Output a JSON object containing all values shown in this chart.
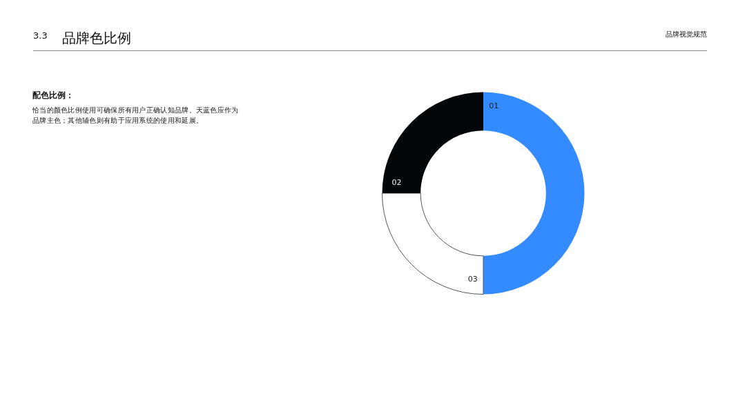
{
  "chart_data": {
    "type": "donut",
    "title": "品牌色比例",
    "categories": [
      "01",
      "03",
      "02"
    ],
    "values": [
      50,
      25,
      25
    ],
    "colors": [
      "#338bff",
      "#ffffff",
      "#030609"
    ],
    "legend": false,
    "annotations": [
      "3.3",
      "品牌视觉规范",
      "配色比例：",
      "恰当的颜色比例使用可确保所有用户正确认知品牌。天蓝色应作为品牌主色；其他辅色则有助于应用系统的使用和延展。"
    ]
  }
}
